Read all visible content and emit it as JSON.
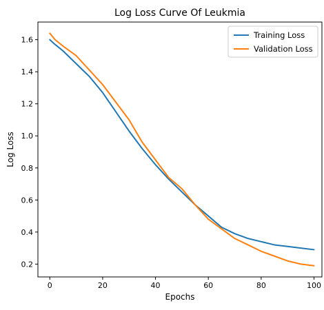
{
  "chart_data": {
    "type": "line",
    "title": "Log Loss Curve Of Leukmia",
    "xlabel": "Epochs",
    "ylabel": "Log Loss",
    "xlim": [
      -4.5,
      103
    ],
    "ylim": [
      0.12,
      1.71
    ],
    "xticks": [
      0,
      20,
      40,
      60,
      80,
      100
    ],
    "yticks": [
      0.2,
      0.4,
      0.6,
      0.8,
      1.0,
      1.2,
      1.4,
      1.6
    ],
    "xtick_labels": [
      "0",
      "20",
      "40",
      "60",
      "80",
      "100"
    ],
    "ytick_labels": [
      "0.2",
      "0.4",
      "0.6",
      "0.8",
      "1.0",
      "1.2",
      "1.4",
      "1.6"
    ],
    "grid": false,
    "legend_position": "top-right",
    "series": [
      {
        "name": "Training Loss",
        "color": "#1f77b4",
        "x": [
          0,
          2,
          5,
          10,
          15,
          20,
          25,
          30,
          35,
          40,
          45,
          50,
          55,
          60,
          65,
          70,
          75,
          80,
          85,
          90,
          95,
          100
        ],
        "y": [
          1.6,
          1.57,
          1.53,
          1.45,
          1.37,
          1.27,
          1.15,
          1.03,
          0.92,
          0.82,
          0.73,
          0.65,
          0.57,
          0.5,
          0.43,
          0.39,
          0.36,
          0.34,
          0.32,
          0.31,
          0.3,
          0.29
        ]
      },
      {
        "name": "Validation Loss",
        "color": "#ff7f0e",
        "x": [
          0,
          2,
          5,
          10,
          15,
          20,
          25,
          30,
          35,
          40,
          45,
          50,
          55,
          60,
          65,
          70,
          75,
          80,
          85,
          90,
          95,
          100
        ],
        "y": [
          1.64,
          1.6,
          1.56,
          1.5,
          1.41,
          1.32,
          1.21,
          1.1,
          0.96,
          0.85,
          0.74,
          0.67,
          0.57,
          0.48,
          0.42,
          0.36,
          0.32,
          0.28,
          0.25,
          0.22,
          0.2,
          0.19
        ]
      }
    ]
  }
}
